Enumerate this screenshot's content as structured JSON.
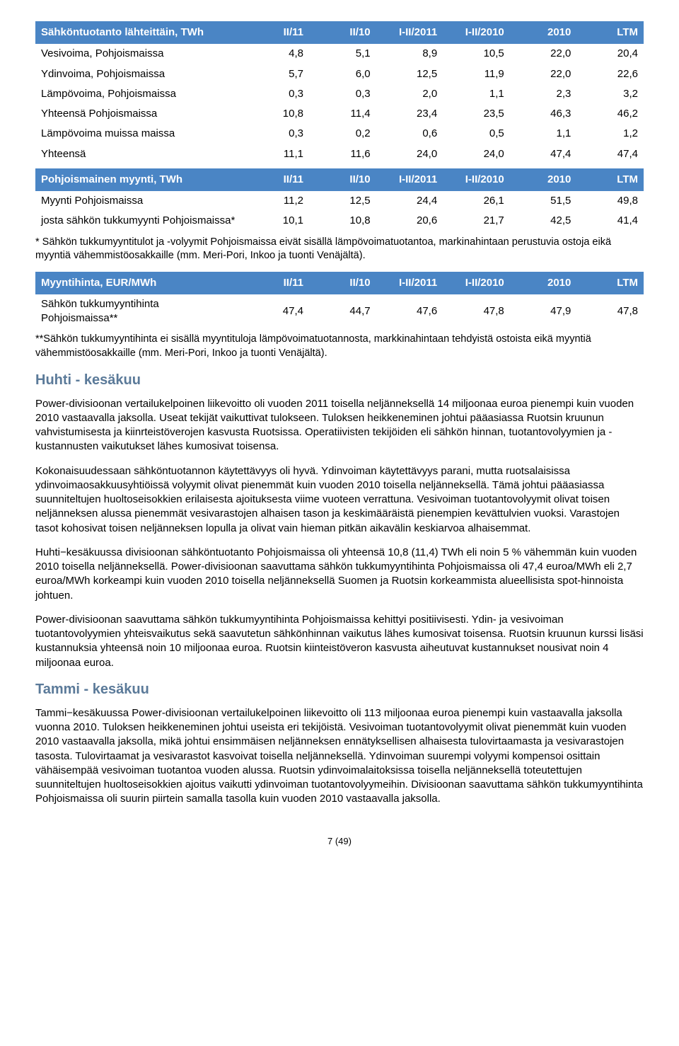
{
  "table1": {
    "headers": [
      "Sähköntuotanto lähteittäin, TWh",
      "II/11",
      "II/10",
      "I-II/2011",
      "I-II/2010",
      "2010",
      "LTM"
    ],
    "rows": [
      [
        "Vesivoima, Pohjoismaissa",
        "4,8",
        "5,1",
        "8,9",
        "10,5",
        "22,0",
        "20,4"
      ],
      [
        "Ydinvoima, Pohjoismaissa",
        "5,7",
        "6,0",
        "12,5",
        "11,9",
        "22,0",
        "22,6"
      ],
      [
        "Lämpövoima, Pohjoismaissa",
        "0,3",
        "0,3",
        "2,0",
        "1,1",
        "2,3",
        "3,2"
      ],
      [
        "Yhteensä Pohjoismaissa",
        "10,8",
        "11,4",
        "23,4",
        "23,5",
        "46,3",
        "46,2"
      ],
      [
        "Lämpövoima muissa maissa",
        "0,3",
        "0,2",
        "0,6",
        "0,5",
        "1,1",
        "1,2"
      ],
      [
        "Yhteensä",
        "11,1",
        "11,6",
        "24,0",
        "24,0",
        "47,4",
        "47,4"
      ]
    ]
  },
  "table2": {
    "headers": [
      "Pohjoismainen myynti, TWh",
      "II/11",
      "II/10",
      "I-II/2011",
      "I-II/2010",
      "2010",
      "LTM"
    ],
    "rows": [
      [
        "Myynti Pohjoismaissa",
        "11,2",
        "12,5",
        "24,4",
        "26,1",
        "51,5",
        "49,8"
      ],
      [
        "josta sähkön tukkumyynti Pohjoismaissa*",
        "10,1",
        "10,8",
        "20,6",
        "21,7",
        "42,5",
        "41,4"
      ]
    ],
    "footnote": "* Sähkön tukkumyyntitulot ja -volyymit Pohjoismaissa eivät sisällä lämpövoimatuotantoa, markinahintaan perustuvia ostoja eikä myyntiä vähemmistöosakkaille (mm. Meri-Pori, Inkoo ja tuonti Venäjältä)."
  },
  "table3": {
    "headers": [
      "Myyntihinta, EUR/MWh",
      "II/11",
      "II/10",
      "I-II/2011",
      "I-II/2010",
      "2010",
      "LTM"
    ],
    "rows": [
      [
        "Sähkön tukkumyyntihinta Pohjoismaissa**",
        "47,4",
        "44,7",
        "47,6",
        "47,8",
        "47,9",
        "47,8"
      ]
    ],
    "footnote": "**Sähkön tukkumyyntihinta ei sisällä myyntituloja lämpövoimatuotannosta, markkinahintaan tehdyistä ostoista eikä myyntiä vähemmistöosakkaille (mm. Meri-Pori, Inkoo ja tuonti Venäjältä)."
  },
  "sections": {
    "s1": {
      "title": "Huhti - kesäkuu",
      "p1": "Power-divisioonan vertailukelpoinen liikevoitto oli vuoden 2011 toisella neljänneksellä 14 miljoonaa euroa pienempi kuin vuoden 2010 vastaavalla jaksolla. Useat tekijät vaikuttivat tulokseen. Tuloksen heikkeneminen johtui pääasiassa Ruotsin kruunun vahvistumisesta ja kiinrteistöverojen kasvusta Ruotsissa. Operatiivisten tekijöiden eli sähkön hinnan, tuotantovolyymien ja -kustannusten vaikutukset lähes kumosivat toisensa.",
      "p2": "Kokonaisuudessaan sähköntuotannon käytettävyys oli hyvä. Ydinvoiman käytettävyys parani, mutta ruotsalaisissa ydinvoimaosakkuusyhtiöissä volyymit olivat pienemmät kuin vuoden 2010 toisella neljänneksellä. Tämä johtui pääasiassa suunniteltujen huoltoseisokkien erilaisesta ajoituksesta viime vuoteen verrattuna. Vesivoiman tuotantovolyymit olivat toisen neljänneksen alussa pienemmät vesivarastojen alhaisen tason ja keskimääräistä pienempien kevättulvien vuoksi. Varastojen tasot kohosivat toisen neljänneksen lopulla ja olivat vain hieman pitkän aikavälin keskiarvoa alhaisemmat.",
      "p3": "Huhti−kesäkuussa divisioonan sähköntuotanto Pohjoismaissa oli yhteensä 10,8 (11,4) TWh eli noin 5 % vähemmän kuin vuoden 2010 toisella neljänneksellä. Power-divisioonan saavuttama sähkön tukkumyyntihinta Pohjoismaissa oli 47,4 euroa/MWh eli 2,7 euroa/MWh korkeampi kuin vuoden 2010 toisella neljänneksellä Suomen ja Ruotsin korkeammista alueellisista spot-hinnoista johtuen.",
      "p4": "Power-divisioonan saavuttama sähkön tukkumyyntihinta Pohjoismaissa kehittyi positiivisesti. Ydin- ja vesivoiman tuotantovolyymien yhteisvaikutus sekä saavutetun sähkönhinnan vaikutus lähes kumosivat toisensa. Ruotsin kruunun kurssi lisäsi kustannuksia yhteensä noin 10 miljoonaa euroa. Ruotsin kiinteistöveron kasvusta aiheutuvat kustannukset nousivat noin 4 miljoonaa euroa."
    },
    "s2": {
      "title": "Tammi - kesäkuu",
      "p1": "Tammi−kesäkuussa Power-divisioonan vertailukelpoinen liikevoitto oli 113 miljoonaa euroa pienempi kuin vastaavalla jaksolla vuonna 2010. Tuloksen heikkeneminen johtui useista eri tekijöistä. Vesivoiman tuotantovolyymit olivat pienemmät kuin vuoden 2010 vastaavalla jaksolla, mikä johtui ensimmäisen neljänneksen ennätyksellisen alhaisesta tulovirtaamasta ja vesivarastojen tasosta. Tulovirtaamat ja vesivarastot kasvoivat toisella neljänneksellä. Ydinvoiman suurempi volyymi kompensoi osittain vähäisempää vesivoiman tuotantoa vuoden alussa. Ruotsin ydinvoimalaitoksissa toisella neljänneksellä toteutettujen suunniteltujen huoltoseisokkien ajoitus vaikutti ydinvoiman tuotantovolyymeihin. Divisioonan saavuttama sähkön tukkumyyntihinta Pohjoismaissa oli suurin piirtein samalla tasolla kuin vuoden 2010 vastaavalla jaksolla."
    }
  },
  "page": "7 (49)",
  "colors": {
    "header_bg": "#4a85c5",
    "header_fg": "#ffffff",
    "heading_fg": "#5b7a99"
  }
}
